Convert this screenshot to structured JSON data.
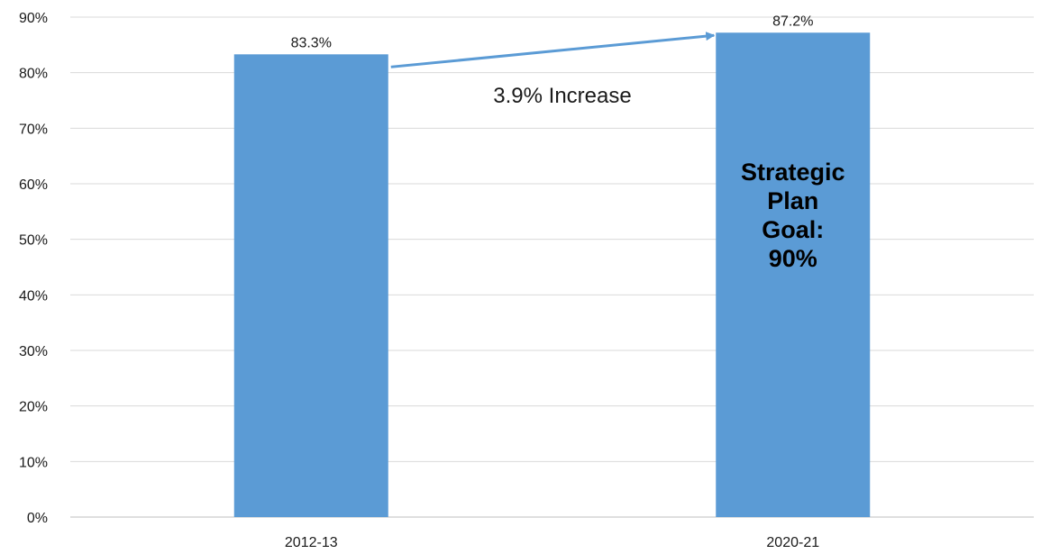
{
  "chart_data": {
    "type": "bar",
    "categories": [
      "2012-13",
      "2020-21"
    ],
    "values": [
      83.3,
      87.2
    ],
    "data_labels": [
      "83.3%",
      "87.2%"
    ],
    "title": "",
    "xlabel": "",
    "ylabel": "",
    "ylim": [
      0,
      90
    ],
    "y_ticks": [
      0,
      10,
      20,
      30,
      40,
      50,
      60,
      70,
      80,
      90
    ],
    "y_tick_format": "%",
    "grid": true,
    "legend": "none",
    "bar_color": "#5B9BD5",
    "annotations": {
      "increase_text": "3.9% Increase",
      "goal_lines": [
        "Strategic",
        "Plan",
        "Goal:",
        "90%"
      ]
    }
  }
}
